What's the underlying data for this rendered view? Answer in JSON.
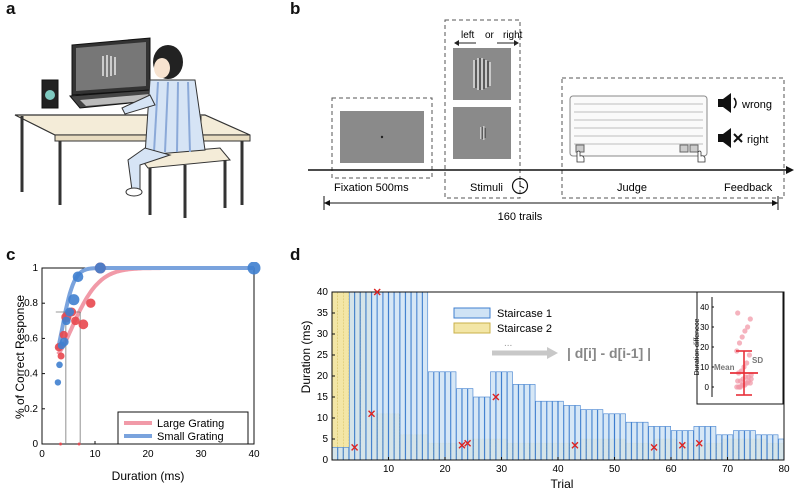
{
  "panels": {
    "a": "a",
    "b": "b",
    "c": "c",
    "d": "d"
  },
  "colors": {
    "red": "#e8474e",
    "pink": "#f19aa8",
    "blue": "#7aa3dd",
    "darkblue": "#3f7fcf",
    "yellow": "#f3e6a6",
    "lightblue": "#cfe3f5",
    "screen": "#8a8a8a"
  },
  "panel_b": {
    "left_label": "left",
    "or_label": "or",
    "right_label": "right",
    "fixation_label": "Fixation 500ms",
    "stimuli_label": "Stimuli",
    "judge_label": "Judge",
    "feedback_label": "Feedback",
    "trials_label": "160 trails",
    "wrong_label": "wrong",
    "right_label2": "right"
  },
  "chart_data": [
    {
      "type": "line",
      "panel": "c",
      "xlabel": "Duration (ms)",
      "ylabel": "% of Correct Response",
      "xlim": [
        0,
        40
      ],
      "ylim": [
        0,
        1
      ],
      "xticks": [
        0,
        10,
        20,
        30,
        40
      ],
      "yticks": [
        0,
        0.2,
        0.4,
        0.6,
        0.8,
        1
      ],
      "ytick_labels": [
        "0",
        "0.2",
        "0.4",
        "0.6",
        "0.8",
        "1"
      ],
      "legend": [
        "Large Grating",
        "Small Grating"
      ],
      "series": [
        {
          "name": "Large Grating",
          "threshold": 7.2,
          "points": [
            [
              3.2,
              0.55
            ],
            [
              3.6,
              0.5
            ],
            [
              4.1,
              0.62
            ],
            [
              4.6,
              0.72
            ],
            [
              5.6,
              0.75
            ],
            [
              6.3,
              0.7
            ],
            [
              7.8,
              0.68
            ],
            [
              9.2,
              0.8
            ],
            [
              11,
              1.0
            ],
            [
              3.5,
              0
            ],
            [
              7,
              0
            ]
          ]
        },
        {
          "name": "Small Grating",
          "threshold": 4.5,
          "points": [
            [
              3.0,
              0.35
            ],
            [
              3.3,
              0.45
            ],
            [
              3.7,
              0.56
            ],
            [
              4.2,
              0.58
            ],
            [
              4.6,
              0.7
            ],
            [
              5.2,
              0.75
            ],
            [
              6.0,
              0.82
            ],
            [
              6.8,
              0.95
            ],
            [
              11,
              1.0
            ],
            [
              40,
              1.0
            ]
          ]
        }
      ]
    },
    {
      "type": "bar",
      "panel": "d",
      "xlabel": "Trial",
      "ylabel": "Duration (ms)",
      "xlim": [
        0,
        80
      ],
      "ylim": [
        0,
        40
      ],
      "xticks": [
        10,
        20,
        30,
        40,
        50,
        60,
        70,
        80
      ],
      "yticks": [
        0,
        5,
        10,
        15,
        20,
        25,
        30,
        35,
        40
      ],
      "legend": [
        "Staircase 1",
        "Staircase 2"
      ],
      "annotation": "| d[i] - d[i-1] |",
      "arrow_label": "...",
      "series": [
        {
          "name": "Staircase 1",
          "values": [
            3,
            3,
            3,
            40,
            40,
            40,
            40,
            40,
            40,
            40,
            40,
            40,
            40,
            40,
            40,
            40,
            40,
            21,
            21,
            21,
            21,
            21,
            17,
            17,
            17,
            15,
            15,
            15,
            21,
            21,
            21,
            21,
            18,
            18,
            18,
            18,
            14,
            14,
            14,
            14,
            14,
            13,
            13,
            13,
            12,
            12,
            12,
            12,
            11,
            11,
            11,
            11,
            9,
            9,
            9,
            9,
            8,
            8,
            8,
            8,
            7,
            7,
            7,
            7,
            8,
            8,
            8,
            8,
            6,
            6,
            6,
            7,
            7,
            7,
            7,
            6,
            6,
            6,
            6,
            5
          ]
        },
        {
          "name": "Staircase 2",
          "values": [
            40,
            40,
            40,
            40,
            40,
            40,
            40,
            11,
            11,
            11,
            11,
            11,
            6,
            6,
            6,
            6,
            6,
            4,
            4,
            4,
            4,
            4,
            4,
            4,
            5,
            5,
            5,
            5,
            5,
            5,
            5,
            4,
            4,
            4,
            4,
            4,
            4,
            4,
            4,
            4,
            4,
            4,
            4,
            4,
            5,
            5,
            5,
            5,
            5,
            5,
            5,
            5,
            4,
            4,
            4,
            4,
            4,
            5,
            5,
            5,
            5,
            4,
            4,
            4,
            4,
            4,
            4,
            4,
            4,
            5,
            5,
            5,
            5,
            5,
            5,
            5,
            5,
            4,
            4,
            4
          ]
        }
      ],
      "reversals": [
        [
          4,
          3
        ],
        [
          7,
          11
        ],
        [
          8,
          40
        ],
        [
          23,
          3.5
        ],
        [
          24,
          4
        ],
        [
          29,
          15
        ],
        [
          43,
          3.5
        ],
        [
          57,
          3
        ],
        [
          62,
          3.5
        ],
        [
          65,
          4
        ]
      ],
      "inset": {
        "ylabel": "Duration diffenece",
        "yticks": [
          0,
          10,
          20,
          30,
          40
        ],
        "ylim": [
          -5,
          45
        ],
        "mean_label": "Mean",
        "sd_label": "SD",
        "mean": 7,
        "sd": 11,
        "points": [
          0,
          0,
          1,
          1,
          2,
          2,
          3,
          3,
          4,
          5,
          5,
          6,
          7,
          8,
          10,
          12,
          16,
          18,
          22,
          25,
          28,
          30,
          34,
          37,
          0,
          1,
          2,
          3,
          4,
          0
        ]
      }
    }
  ]
}
